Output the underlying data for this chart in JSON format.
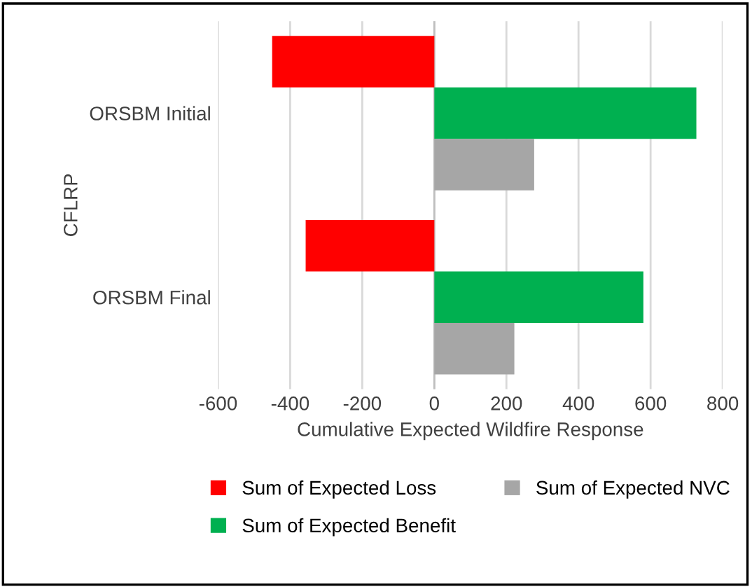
{
  "chart_data": {
    "type": "bar",
    "orientation": "horizontal",
    "categories": [
      "ORSBM Initial",
      "ORSBM Final"
    ],
    "series": [
      {
        "name": "Sum of Expected Loss",
        "color": "#ff0000",
        "values": [
          -450,
          -357
        ]
      },
      {
        "name": "Sum of Expected Benefit",
        "color": "#00b050",
        "values": [
          727,
          580
        ]
      },
      {
        "name": "Sum of Expected NVC",
        "color": "#a6a6a6",
        "values": [
          277,
          222
        ]
      }
    ],
    "xlabel": "Cumulative Expected Wildfire Response",
    "ylabel": "CFLRP",
    "xlim": [
      -600,
      800
    ],
    "xticks": [
      -600,
      -400,
      -200,
      0,
      200,
      400,
      600,
      800
    ],
    "grid": "x",
    "legend": "bottom"
  }
}
